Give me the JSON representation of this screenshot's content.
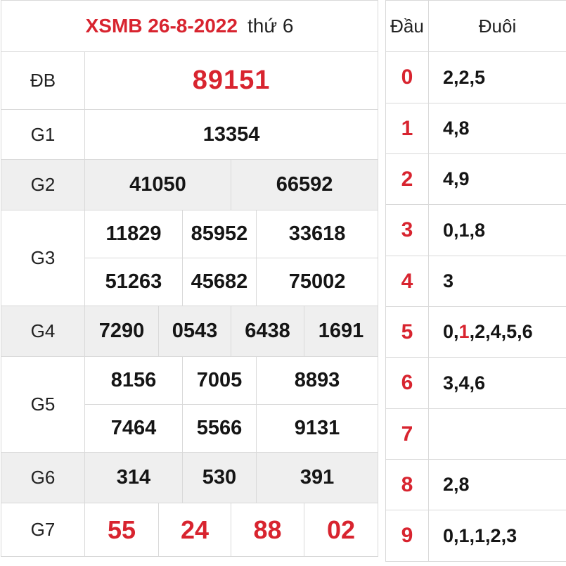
{
  "header": {
    "title": "XSMB 26-8-2022",
    "weekday": "thứ 6"
  },
  "prizes": {
    "db": {
      "label": "ĐB",
      "numbers": [
        "89151"
      ]
    },
    "g1": {
      "label": "G1",
      "numbers": [
        "13354"
      ]
    },
    "g2": {
      "label": "G2",
      "numbers": [
        "41050",
        "66592"
      ]
    },
    "g3": {
      "label": "G3",
      "numbers": [
        "11829",
        "85952",
        "33618",
        "51263",
        "45682",
        "75002"
      ]
    },
    "g4": {
      "label": "G4",
      "numbers": [
        "7290",
        "0543",
        "6438",
        "1691"
      ]
    },
    "g5": {
      "label": "G5",
      "numbers": [
        "8156",
        "7005",
        "8893",
        "7464",
        "5566",
        "9131"
      ]
    },
    "g6": {
      "label": "G6",
      "numbers": [
        "314",
        "530",
        "391"
      ]
    },
    "g7": {
      "label": "G7",
      "numbers": [
        "55",
        "24",
        "88",
        "02"
      ]
    }
  },
  "loto": {
    "header_dau": "Đầu",
    "header_duoi": "Đuôi",
    "rows": [
      {
        "dau": "0",
        "duoi": "2,2,5"
      },
      {
        "dau": "1",
        "duoi": "4,8"
      },
      {
        "dau": "2",
        "duoi": "4,9"
      },
      {
        "dau": "3",
        "duoi": "0,1,8"
      },
      {
        "dau": "4",
        "duoi": "3"
      },
      {
        "dau": "5",
        "duoi_pre": "0,",
        "duoi_hl": "1",
        "duoi_post": ",2,4,5,6"
      },
      {
        "dau": "6",
        "duoi": "3,4,6"
      },
      {
        "dau": "7",
        "duoi": ""
      },
      {
        "dau": "8",
        "duoi": "2,8"
      },
      {
        "dau": "9",
        "duoi": "0,1,1,2,3"
      }
    ]
  },
  "colors": {
    "accent": "#d8242f",
    "row_gray": "#efefef",
    "border": "#d9d9d9"
  }
}
